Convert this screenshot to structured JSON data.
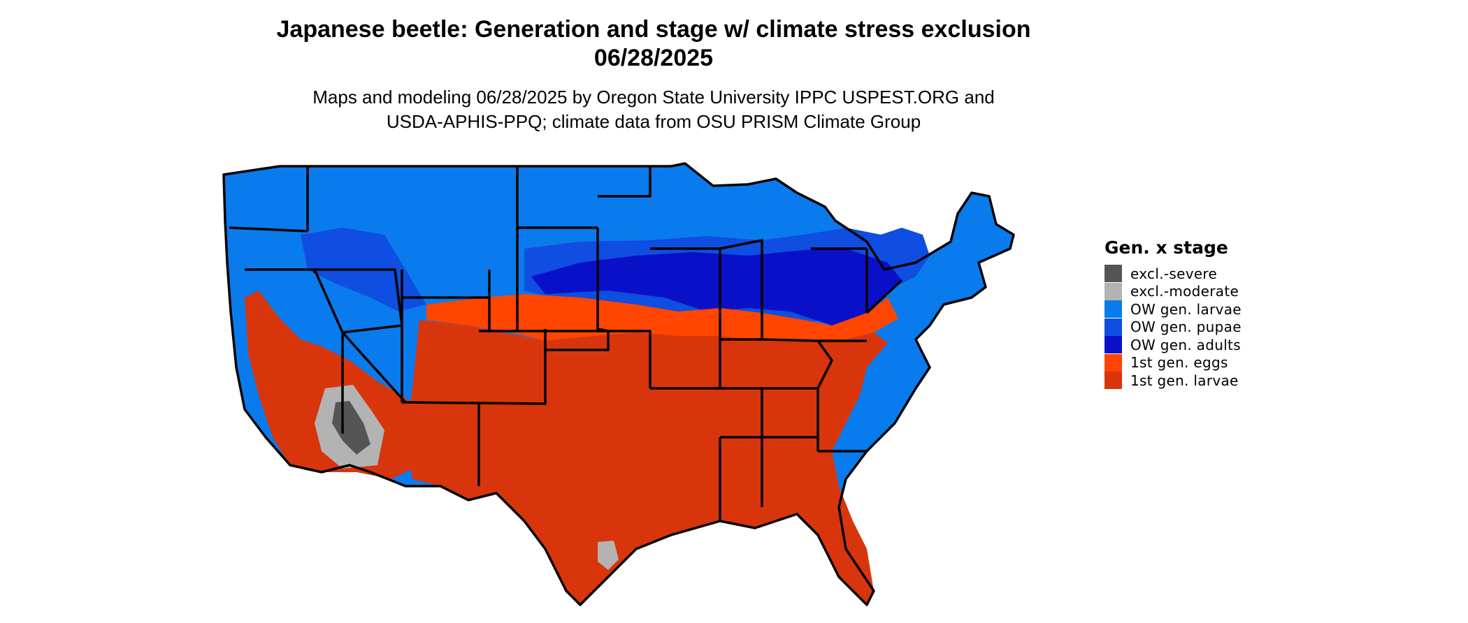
{
  "title": {
    "line1": "Japanese beetle: Generation and stage w/ climate stress exclusion",
    "line2": "06/28/2025"
  },
  "subtitle": {
    "line1": "Maps and modeling 06/28/2025 by Oregon State University IPPC USPEST.ORG and",
    "line2": "USDA-APHIS-PPQ; climate data from OSU PRISM Climate Group"
  },
  "legend": {
    "title": "Gen. x stage",
    "items": [
      {
        "label": "excl.-severe",
        "color": "#555555"
      },
      {
        "label": "excl.-moderate",
        "color": "#b3b3b3"
      },
      {
        "label": "OW gen. larvae",
        "color": "#0a7bec"
      },
      {
        "label": "OW gen. pupae",
        "color": "#0f4ee0"
      },
      {
        "label": "OW gen. adults",
        "color": "#0a10c8"
      },
      {
        "label": "1st gen. eggs",
        "color": "#ff4500"
      },
      {
        "label": "1st gen. larvae",
        "color": "#d9350c"
      }
    ]
  },
  "map": {
    "region": "Contiguous United States",
    "colors": {
      "excl_severe": "#555555",
      "excl_moderate": "#b3b3b3",
      "ow_larvae": "#0a7bec",
      "ow_pupae": "#0f4ee0",
      "ow_adults": "#0a10c8",
      "gen1_eggs": "#ff4500",
      "gen1_larvae": "#d9350c",
      "borders": "#000000"
    }
  }
}
